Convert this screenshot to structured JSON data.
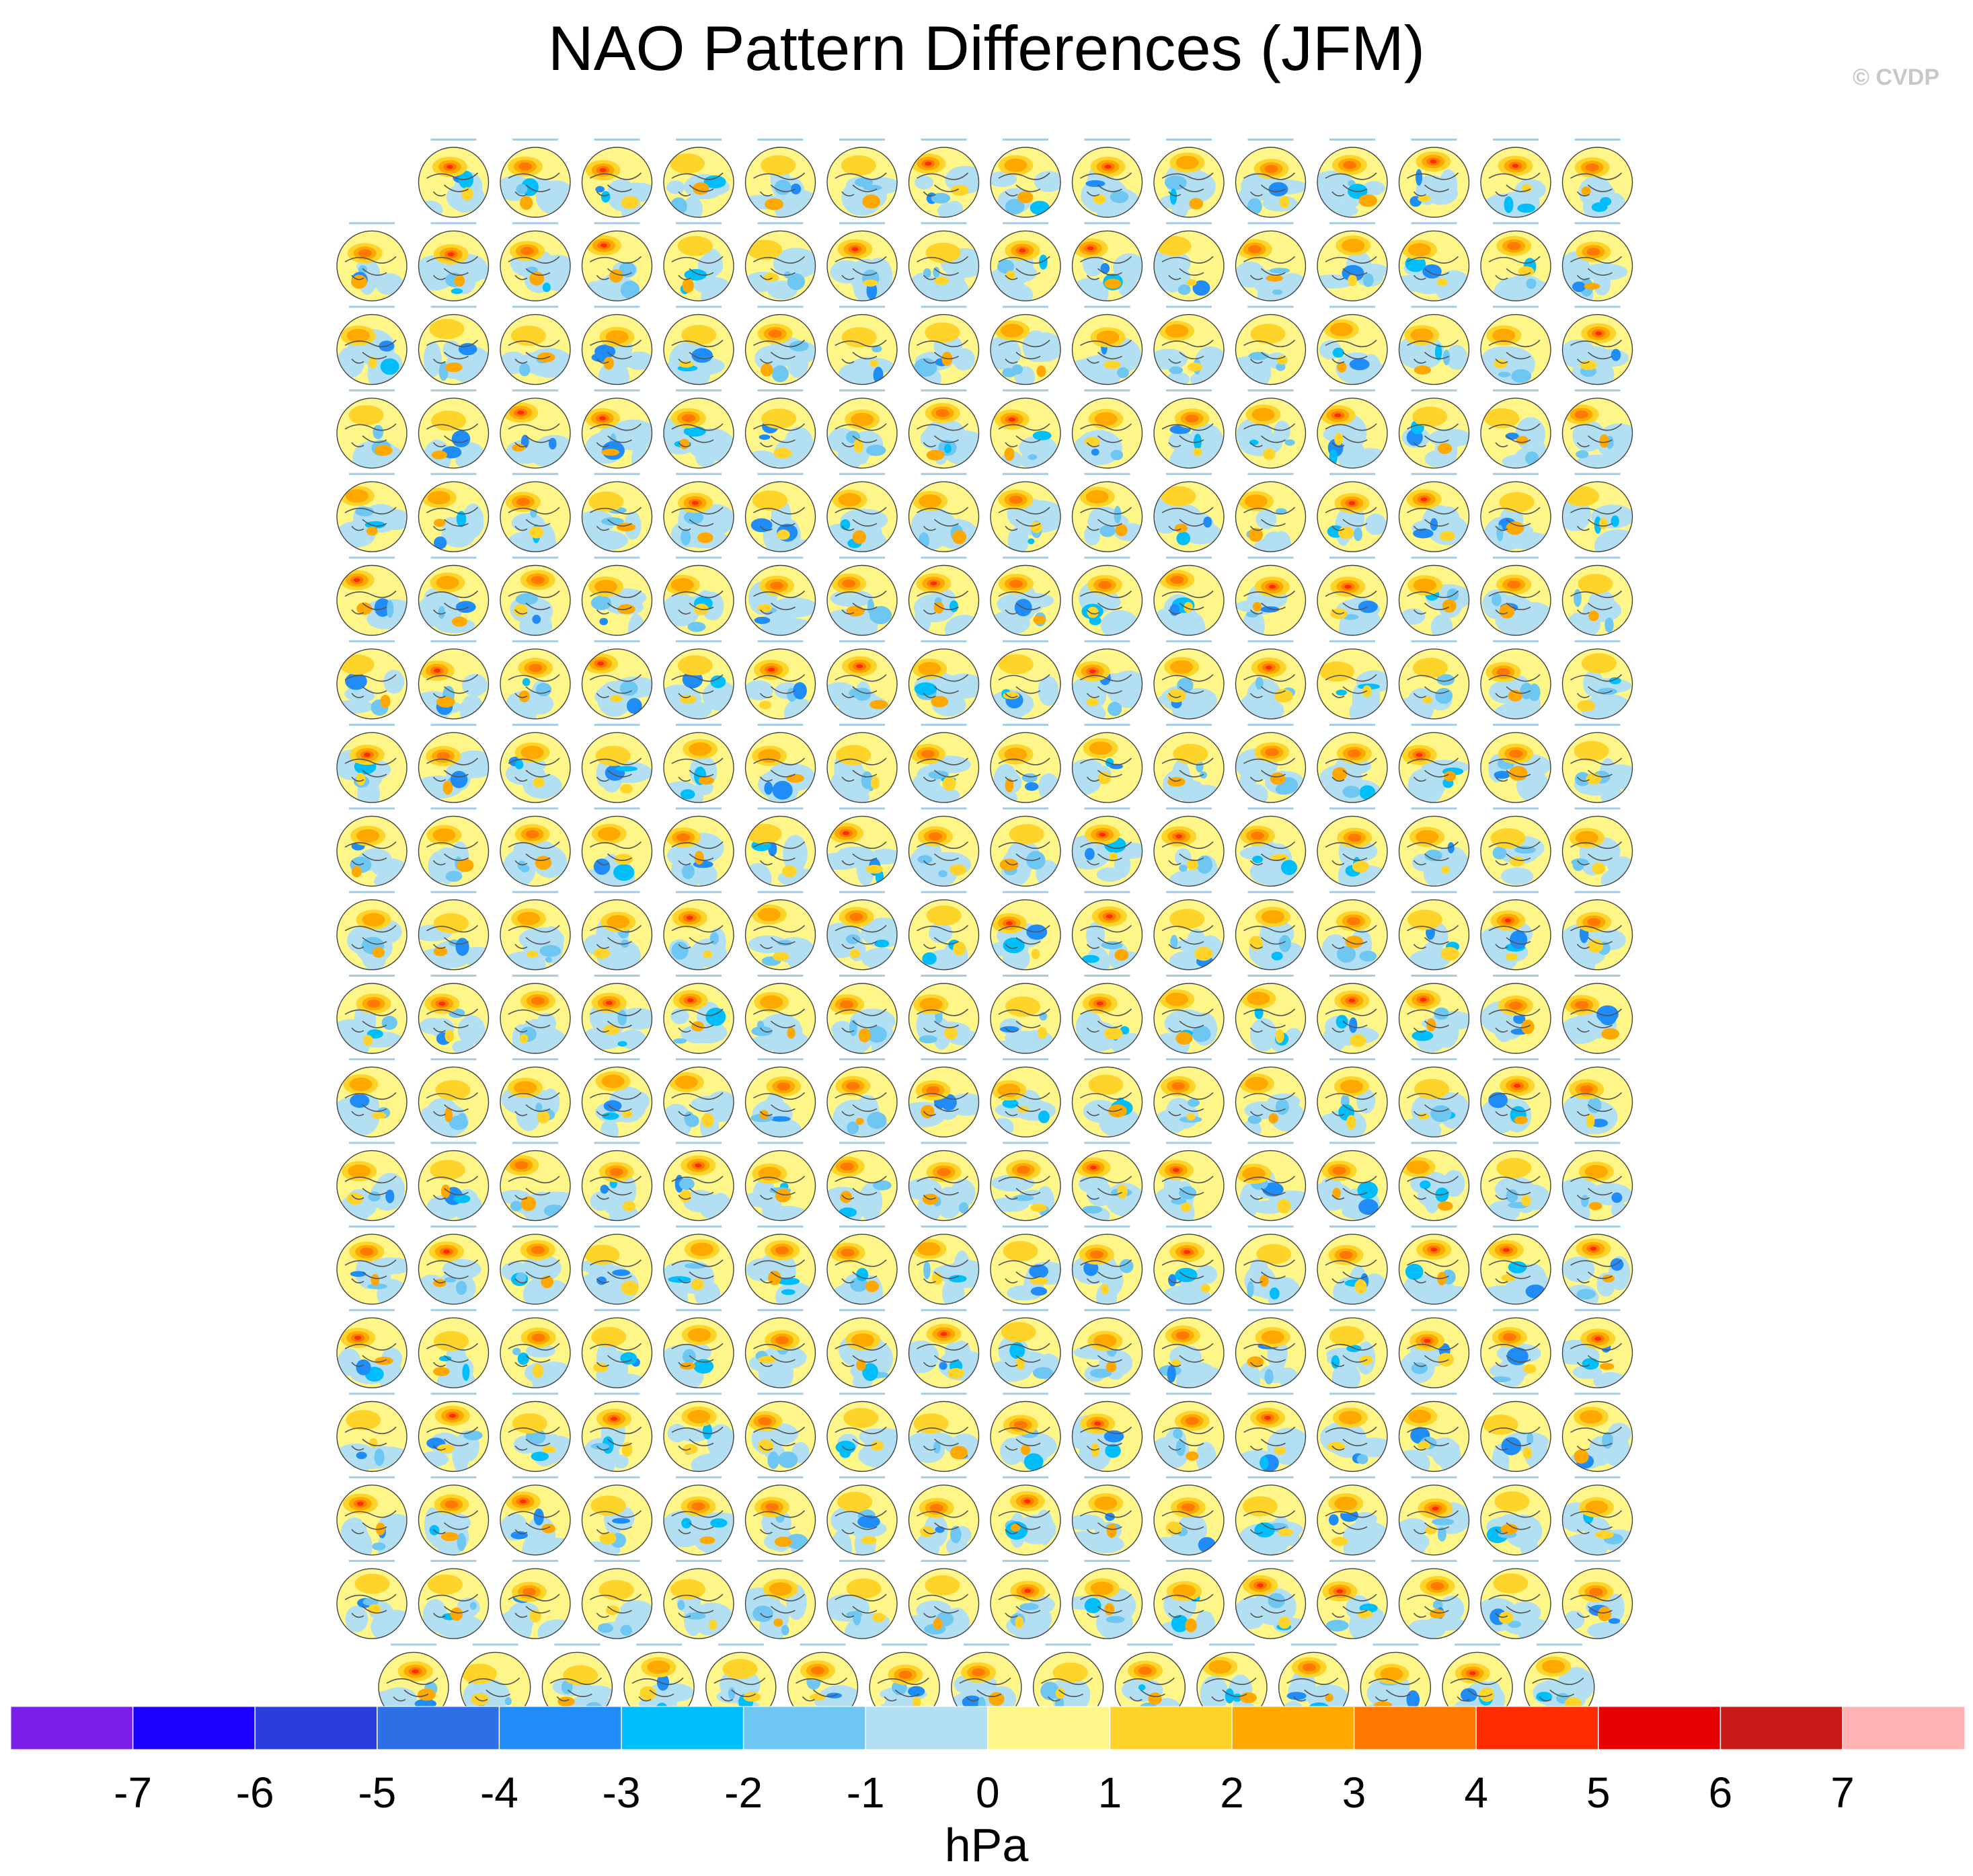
{
  "title": "NAO Pattern Differences (JFM)",
  "copyright": "© CVDP",
  "chart_data": {
    "type": "heatmap",
    "title": "NAO Pattern Differences (JFM)",
    "description_grid": {
      "rows": 19,
      "columns": 16,
      "panel_projection": "north-polar-stereographic"
    },
    "colorbar": {
      "unit": "hPa",
      "tick_labels": [
        "-7",
        "-6",
        "-5",
        "-4",
        "-3",
        "-2",
        "-1",
        "0",
        "1",
        "2",
        "3",
        "4",
        "5",
        "6",
        "7"
      ],
      "levels": [
        -7,
        -6,
        -5,
        -4,
        -3,
        -2,
        -1,
        0,
        1,
        2,
        3,
        4,
        5,
        6,
        7
      ],
      "colors": [
        "#7a1fea",
        "#1a00ff",
        "#2a3ddd",
        "#2e6fe6",
        "#1f8cf8",
        "#00bdfc",
        "#6ec6f2",
        "#b3dff2",
        "#fff68a",
        "#ffd42a",
        "#ffa800",
        "#ff7800",
        "#ff2c00",
        "#e40000",
        "#c91a1a",
        "#ffb2b2"
      ]
    }
  }
}
